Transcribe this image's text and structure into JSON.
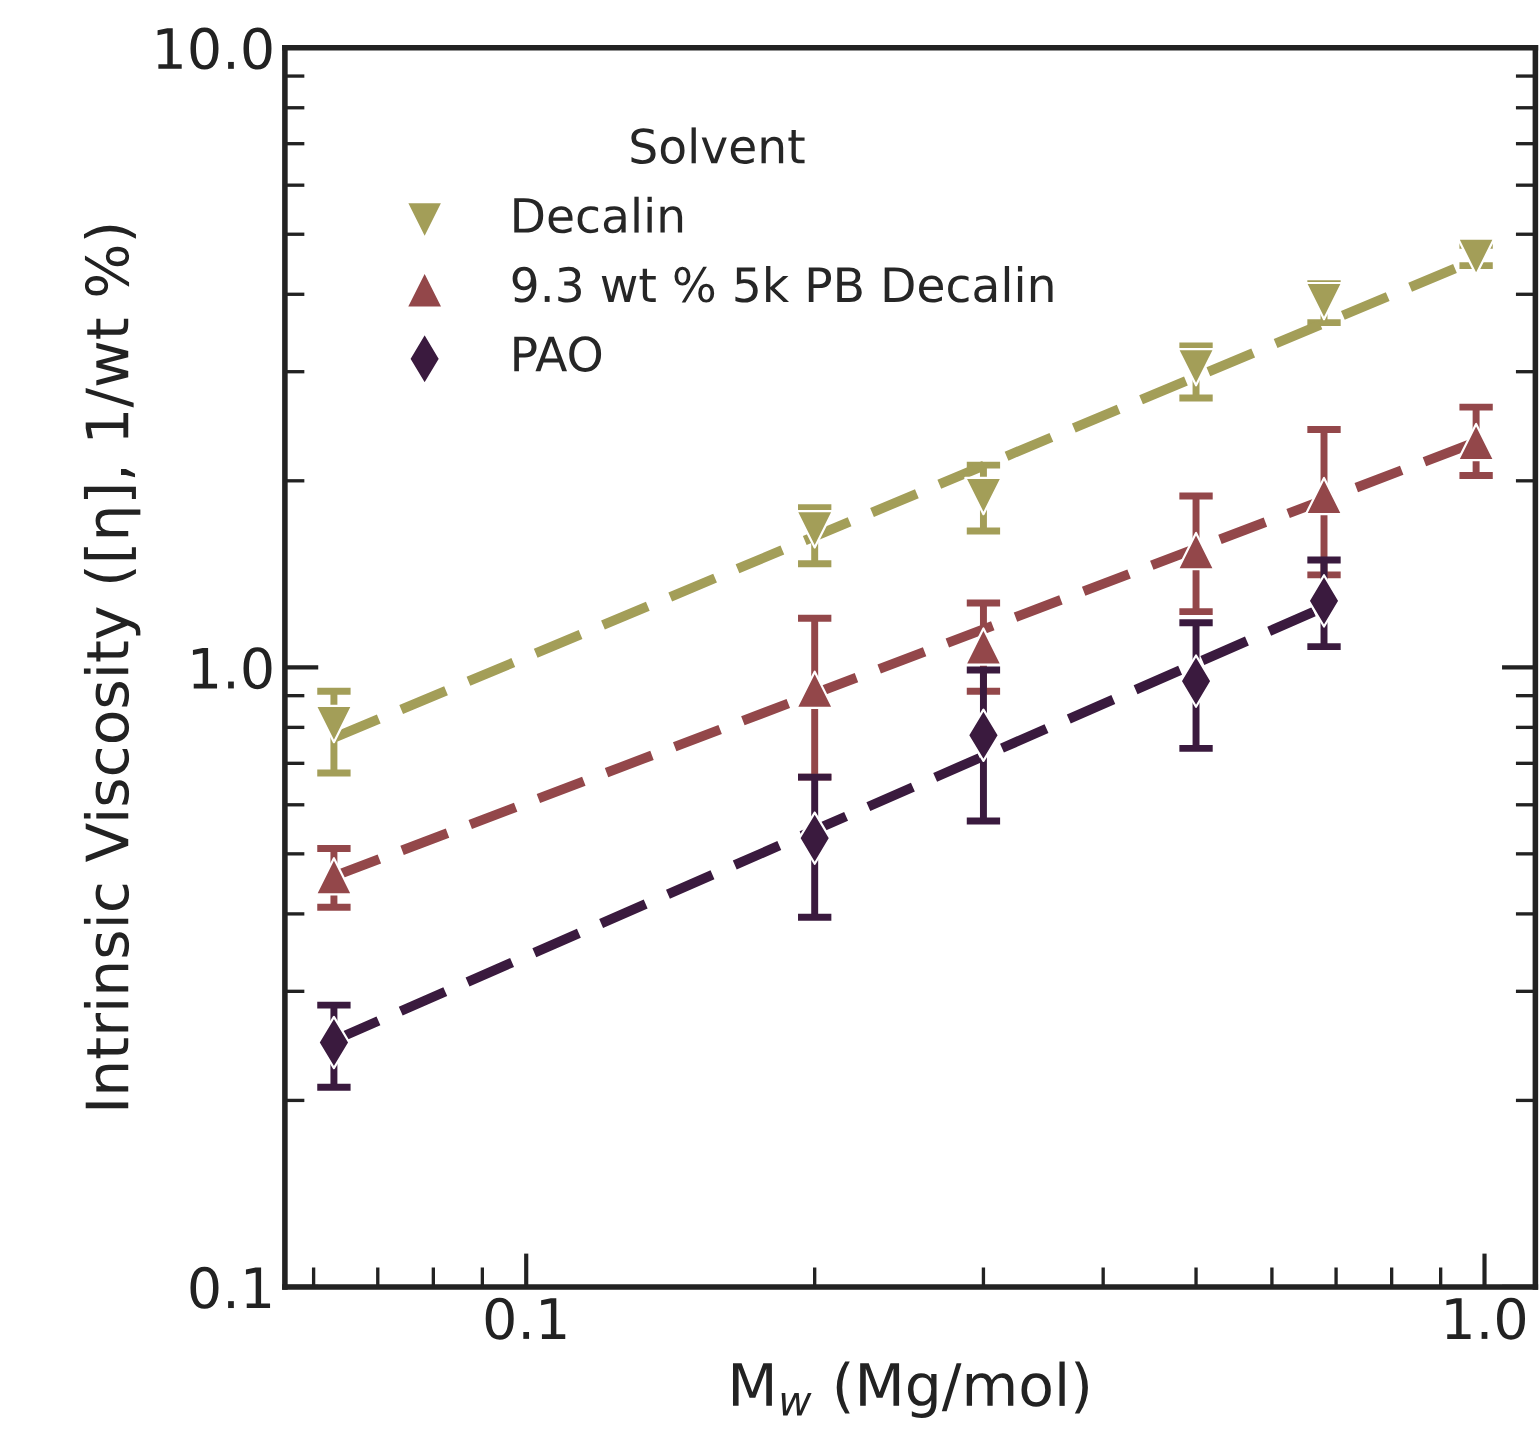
{
  "chart_data": {
    "type": "scatter",
    "xlabel": "M$_{w}$ (Mg/mol)",
    "ylabel": "Intrinsic Viscosity ([η], 1/wt %)",
    "legend_title": "Solvent",
    "legend": "top left",
    "log": "xy",
    "grid": false,
    "xlim": [
      0.056,
      1.13
    ],
    "ylim": [
      0.1,
      10
    ],
    "xticks": [
      {
        "value": 0.1,
        "label": "0.1"
      },
      {
        "value": 1,
        "label": "1.0"
      }
    ],
    "yticks": [
      {
        "value": 0.1,
        "label": "0.1"
      },
      {
        "value": 1,
        "label": "1.0"
      },
      {
        "value": 10,
        "label": "10.0"
      }
    ],
    "series": [
      {
        "name": "Decalin",
        "marker": "triangle_down",
        "color": "#a39e58",
        "x": [
          0.063,
          0.2,
          0.3,
          0.5,
          0.68,
          0.98
        ],
        "values": [
          0.81,
          1.67,
          1.89,
          3.05,
          3.9,
          4.6
        ],
        "errors": [
          [
            0.675,
            0.915
          ],
          [
            1.47,
            1.81
          ],
          [
            1.66,
            2.12
          ],
          [
            2.72,
            3.3
          ],
          [
            3.6,
            4.16
          ],
          [
            4.45,
            4.8
          ]
        ]
      },
      {
        "name": "9.3 wt % 5k PB Decalin",
        "marker": "triangle",
        "color": "#93474a",
        "x": [
          0.063,
          0.2,
          0.3,
          0.5,
          0.68,
          0.98
        ],
        "values": [
          0.46,
          0.92,
          1.08,
          1.54,
          1.89,
          2.31
        ],
        "errors": [
          [
            0.41,
            0.51
          ],
          [
            0.665,
            1.2
          ],
          [
            0.915,
            1.27
          ],
          [
            1.23,
            1.89
          ],
          [
            1.41,
            2.42
          ],
          [
            2.04,
            2.63
          ]
        ]
      },
      {
        "name": "PAO",
        "marker": "diamond",
        "color": "#3a1a3e",
        "x": [
          0.063,
          0.2,
          0.3,
          0.5,
          0.68
        ],
        "values": [
          0.248,
          0.53,
          0.777,
          0.95,
          1.28
        ],
        "errors": [
          [
            0.21,
            0.285
          ],
          [
            0.395,
            0.665
          ],
          [
            0.565,
            0.99
          ],
          [
            0.74,
            1.18
          ],
          [
            1.08,
            1.49
          ]
        ]
      },
      {
        "type": "line",
        "line_style": "dashed",
        "color": "#a39e58",
        "x": [
          0.063,
          0.98
        ],
        "values": [
          0.77,
          4.55
        ]
      },
      {
        "type": "line",
        "line_style": "dashed",
        "color": "#93474a",
        "x": [
          0.063,
          0.98
        ],
        "values": [
          0.46,
          2.31
        ]
      },
      {
        "type": "line",
        "line_style": "dashed",
        "color": "#3a1a3e",
        "x": [
          0.063,
          0.68
        ],
        "values": [
          0.25,
          1.25
        ]
      }
    ]
  }
}
